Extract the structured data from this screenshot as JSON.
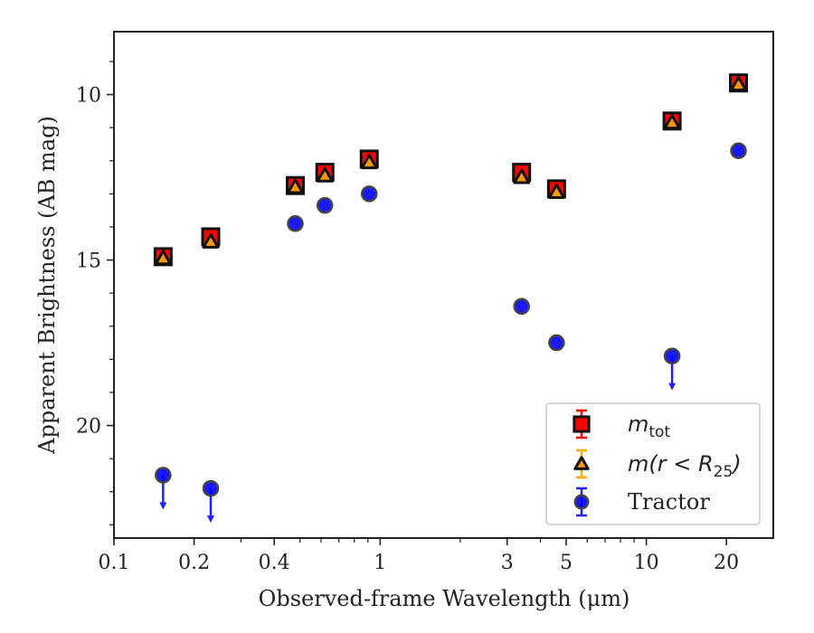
{
  "chart_data": {
    "type": "scatter",
    "xlabel": "Observed-frame Wavelength (μm)",
    "ylabel": "Apparent Brightness (AB mag)",
    "x_scale": "log",
    "xlim": [
      0.1,
      30
    ],
    "ylim": [
      23.4,
      8.1
    ],
    "y_inverted": true,
    "x_ticks": [
      {
        "value": 0.1,
        "label": "0.1"
      },
      {
        "value": 0.2,
        "label": "0.2"
      },
      {
        "value": 0.4,
        "label": "0.4"
      },
      {
        "value": 1,
        "label": "1"
      },
      {
        "value": 3,
        "label": "3"
      },
      {
        "value": 5,
        "label": "5"
      },
      {
        "value": 10,
        "label": "10"
      },
      {
        "value": 20,
        "label": "20"
      }
    ],
    "y_ticks": [
      {
        "value": 10,
        "label": "10"
      },
      {
        "value": 15,
        "label": "15"
      },
      {
        "value": 20,
        "label": "20"
      }
    ],
    "grid": false,
    "legend_position": "bottom-right",
    "legend": [
      {
        "label": "m",
        "subscript": "tot"
      },
      {
        "label": "m(r < R",
        "subscript": "25",
        "suffix": ")"
      },
      {
        "label": "Tractor"
      }
    ],
    "series": [
      {
        "marker": "square",
        "color": "#ff0000",
        "edge": "#111111",
        "points": [
          {
            "x": 0.153,
            "y": 14.9
          },
          {
            "x": 0.231,
            "y": 14.3
          },
          {
            "x": 0.48,
            "y": 12.75
          },
          {
            "x": 0.62,
            "y": 12.35
          },
          {
            "x": 0.91,
            "y": 11.95
          },
          {
            "x": 3.4,
            "y": 12.35
          },
          {
            "x": 4.6,
            "y": 12.85
          },
          {
            "x": 12.5,
            "y": 10.8
          },
          {
            "x": 22.2,
            "y": 9.65
          }
        ]
      },
      {
        "marker": "triangle",
        "color": "#ff9900",
        "edge": "#111111",
        "points": [
          {
            "x": 0.153,
            "y": 14.95
          },
          {
            "x": 0.231,
            "y": 14.45
          },
          {
            "x": 0.48,
            "y": 12.8
          },
          {
            "x": 0.62,
            "y": 12.45
          },
          {
            "x": 0.91,
            "y": 12.05
          },
          {
            "x": 3.4,
            "y": 12.5
          },
          {
            "x": 4.6,
            "y": 12.95
          },
          {
            "x": 12.5,
            "y": 10.85
          },
          {
            "x": 22.2,
            "y": 9.7
          }
        ]
      },
      {
        "marker": "circle",
        "color": "#0000ff",
        "edge": "#444444",
        "points": [
          {
            "x": 0.153,
            "y": 21.5,
            "upper_limit": true
          },
          {
            "x": 0.231,
            "y": 21.9,
            "upper_limit": true
          },
          {
            "x": 0.48,
            "y": 13.9
          },
          {
            "x": 0.62,
            "y": 13.35
          },
          {
            "x": 0.91,
            "y": 13.0
          },
          {
            "x": 3.4,
            "y": 16.4
          },
          {
            "x": 4.6,
            "y": 17.5
          },
          {
            "x": 12.5,
            "y": 17.9,
            "upper_limit": true
          },
          {
            "x": 22.2,
            "y": 11.7
          }
        ]
      }
    ]
  }
}
